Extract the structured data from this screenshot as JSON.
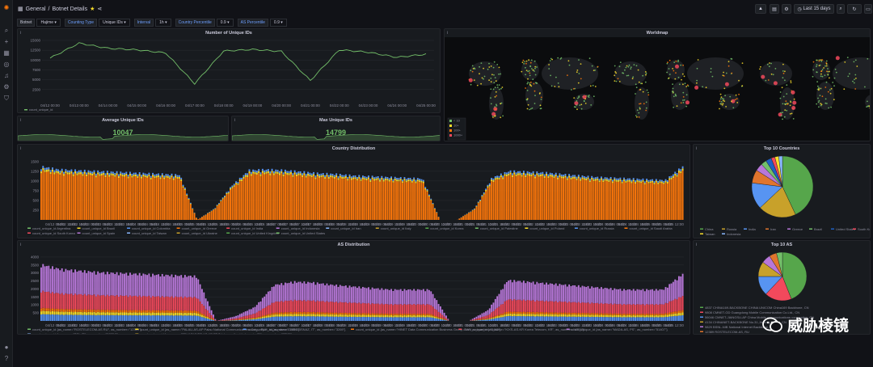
{
  "topbar": {
    "breadcrumb_home": "General",
    "breadcrumb_sep": "/",
    "breadcrumb_page": "Botnet Details",
    "time_range": "Last 15 days"
  },
  "variables": [
    {
      "label": "Botnet",
      "value": "Hajime",
      "blue": false
    },
    {
      "label": "Counting Type",
      "value": "Unique IDs",
      "blue": true
    },
    {
      "label": "Interval",
      "value": "1h",
      "blue": true
    },
    {
      "label": "Country Percentile",
      "value": "0.9",
      "blue": true
    },
    {
      "label": "AS Percentile",
      "value": "0.9",
      "blue": true
    }
  ],
  "panels": {
    "unique_ids": {
      "title": "Number of Unique IDs",
      "legend": "count_unique_id"
    },
    "worldmap": {
      "title": "Worldmap",
      "legend": [
        "< 10",
        "10+",
        "100+",
        "1000+"
      ]
    },
    "avg": {
      "title": "Average Unique IDs",
      "value": "10047"
    },
    "max": {
      "title": "Max Unique IDs",
      "value": "14799"
    },
    "country": {
      "title": "Country Distribution"
    },
    "top_countries": {
      "title": "Top 10 Countries"
    },
    "as_dist": {
      "title": "AS Distribution"
    },
    "top_as": {
      "title": "Top 10 AS"
    }
  },
  "watermark": "威胁棱镜",
  "colors": {
    "green": "#73bf69",
    "orange": "#ff780a",
    "purple": "#b877d9",
    "red": "#f2495c",
    "blue": "#5794f2",
    "yellow": "#fade2a",
    "bg": "#111217",
    "panel": "#181b1f"
  },
  "chart_data": [
    {
      "type": "line",
      "title": "Number of Unique IDs",
      "x": [
        "04/12 00:00",
        "04/13 00:00",
        "04/14 00:00",
        "04/15 00:00",
        "04/16 00:00",
        "04/17 00:00",
        "04/18 00:00",
        "04/19 00:00",
        "04/20 00:00",
        "04/21 00:00",
        "04/22 00:00",
        "04/23 00:00",
        "04/24 00:00",
        "04/25 00:00"
      ],
      "yticks": [
        "2500",
        "5000",
        "7500",
        "10000",
        "12500",
        "15000"
      ],
      "ylim": [
        0,
        15000
      ],
      "series": [
        {
          "name": "count_unique_id",
          "values": [
            10500,
            14300,
            13000,
            12600,
            11800,
            4000,
            12300,
            12700,
            12200,
            4800,
            12600,
            12000,
            10700,
            11500
          ]
        }
      ]
    },
    {
      "type": "bar",
      "title": "Country Distribution",
      "x": [
        "04/12 06:00",
        "04/12 12:00",
        "04/12 18:00",
        "04/13 00:00",
        "04/13 06:00",
        "04/13 12:00",
        "04/13 18:00",
        "04/14 00:00",
        "04/14 06:00",
        "04/14 12:00",
        "04/14 18:00",
        "04/15 00:00",
        "04/15 06:00",
        "04/15 12:00",
        "04/15 18:00",
        "04/16 00:00",
        "04/16 06:00",
        "04/16 12:00",
        "04/16 18:00",
        "04/17 00:00",
        "04/17 06:00",
        "04/17 12:00",
        "04/17 18:00",
        "04/18 00:00",
        "04/18 06:00",
        "04/18 12:00",
        "04/18 18:00",
        "04/19 00:00",
        "04/19 06:00",
        "04/19 12:00",
        "04/19 18:00",
        "04/20 00:00",
        "04/20 06:00",
        "04/20 12:00",
        "04/20 18:00",
        "04/21 00:00",
        "04/21 06:00",
        "04/21 12:00",
        "04/21 18:00",
        "04/22 00:00",
        "04/22 06:00",
        "04/22 12:00",
        "04/22 18:00",
        "04/23 00:00",
        "04/23 06:00",
        "04/23 12:00",
        "04/23 18:00",
        "04/24 00:00",
        "04/24 06:00",
        "04/24 12:00",
        "04/24 18:00",
        "04/25 00:00",
        "04/25 06:00",
        "04/25 12:00"
      ],
      "yticks": [
        "250",
        "500",
        "750",
        "1000",
        "1250",
        "1500"
      ],
      "ylim": [
        0,
        1600
      ],
      "series": [
        {
          "name": "count_unique_id Argentina"
        },
        {
          "name": "count_unique_id Brazil"
        },
        {
          "name": "count_unique_id Colombia"
        },
        {
          "name": "count_unique_id Greece"
        },
        {
          "name": "count_unique_id India"
        },
        {
          "name": "count_unique_id Indonesia"
        },
        {
          "name": "count_unique_id Iran"
        },
        {
          "name": "count_unique_id Italy"
        },
        {
          "name": "count_unique_id Korea"
        },
        {
          "name": "count_unique_id Palestine"
        },
        {
          "name": "count_unique_id Poland"
        },
        {
          "name": "count_unique_id Russia"
        },
        {
          "name": "count_unique_id Saudi Arabia"
        },
        {
          "name": "count_unique_id South Korea"
        },
        {
          "name": "count_unique_id Spain"
        },
        {
          "name": "count_unique_id Taiwan"
        },
        {
          "name": "count_unique_id Ukraine"
        },
        {
          "name": "count_unique_id United Kingdom"
        },
        {
          "name": "count_unique_id United States"
        }
      ],
      "envelope": [
        1400,
        1320,
        1300,
        1280,
        1260,
        1240,
        1220,
        1200,
        1180,
        0,
        300,
        900,
        1300,
        1320,
        1300,
        1260,
        1220,
        1200,
        1160,
        1140,
        1120,
        1100,
        1080,
        0,
        0,
        300,
        1100,
        1280,
        1260,
        1240,
        1200,
        1160,
        1120,
        1100,
        1080,
        1060,
        1040,
        1400
      ]
    },
    {
      "type": "pie",
      "title": "Top 10 Countries",
      "categories": [
        "China",
        "Russia",
        "India",
        "Iran",
        "Greece",
        "Brazil",
        "United States",
        "South Korea",
        "Taiwan",
        "Indonesia"
      ],
      "values": [
        43,
        20,
        14,
        7,
        4,
        3,
        3,
        2,
        2,
        2
      ],
      "colors": [
        "#56a64b",
        "#c8a12a",
        "#5794f2",
        "#e0752d",
        "#b877d9",
        "#73bf69",
        "#1f60c4",
        "#f2495c",
        "#fade2a",
        "#8ab8ff"
      ]
    },
    {
      "type": "bar",
      "title": "AS Distribution",
      "x": [
        "04/12 06:00",
        "04/12 12:00",
        "04/12 18:00",
        "04/13 00:00",
        "04/13 06:00",
        "04/13 12:00",
        "04/13 18:00",
        "04/14 00:00",
        "04/14 06:00",
        "04/14 12:00",
        "04/14 18:00",
        "04/15 00:00",
        "04/15 06:00",
        "04/15 12:00",
        "04/15 18:00",
        "04/16 00:00",
        "04/16 06:00",
        "04/16 12:00",
        "04/16 18:00",
        "04/17 00:00",
        "04/17 06:00",
        "04/17 12:00",
        "04/17 18:00",
        "04/18 00:00",
        "04/18 06:00",
        "04/18 12:00",
        "04/18 18:00",
        "04/19 00:00",
        "04/19 06:00",
        "04/19 12:00",
        "04/19 18:00",
        "04/20 00:00",
        "04/20 06:00",
        "04/20 12:00",
        "04/20 18:00",
        "04/21 00:00",
        "04/21 06:00",
        "04/21 12:00",
        "04/21 18:00",
        "04/22 00:00",
        "04/22 06:00",
        "04/22 12:00",
        "04/22 18:00",
        "04/23 00:00",
        "04/23 06:00",
        "04/23 12:00",
        "04/23 18:00",
        "04/24 00:00",
        "04/24 06:00",
        "04/24 12:00",
        "04/24 18:00",
        "04/25 00:00",
        "04/25 06:00",
        "04/25 12:00"
      ],
      "yticks": [
        "500",
        "1000",
        "1500",
        "2000",
        "2500",
        "3000",
        "3500",
        "4000"
      ],
      "ylim": [
        0,
        4200
      ],
      "series": [
        {
          "name": "count_unique_id {as_name=\"ROSTELECOM-AS RU\", as_number=\"12389\"}"
        },
        {
          "name": "count_unique_id {as_name=\"PALAU-AS-AP Palau National Communications Corp., PW\", as_number=\"17893\"}"
        },
        {
          "name": "count_unique_id {as_name=\"ASN-IBSNAZ, IT\", as_number=\"3269\"}"
        },
        {
          "name": "count_unique_id {as_name=\"HINET Data Communication Business Group, TW\", as_number=\"3462\"}"
        },
        {
          "name": "count_unique_id {as_name=\"KIXS-AS-KR Korea Telecom, KR\", as_number=\"4766\"}"
        },
        {
          "name": "count_unique_id {as_name=\"MADA-AS, PS\", as_number=\"51407\"}"
        },
        {
          "name": "count_unique_id {as_name=\"TCI, IR\", as_number=\"58224\"}"
        },
        {
          "name": "count_unique_id {as_name=\"TELKOMNET-AS-AP PT Telekomunikasi Indonesia, ID\", as_number=\"7713\"}"
        }
      ],
      "envelope": [
        3600,
        3300,
        3200,
        3100,
        3050,
        3000,
        2950,
        2900,
        2850,
        0,
        300,
        900,
        2300,
        2500,
        2450,
        2300,
        2200,
        2100,
        2000,
        2000,
        2000,
        0,
        0,
        700,
        2600,
        2500,
        2400,
        2300,
        2200,
        2100,
        2000,
        2000,
        2000,
        3000
      ]
    },
    {
      "type": "pie",
      "title": "Top 10 AS",
      "categories": [
        "4837 CHINA169-BACKBONE CHINA UNICOM China169 Backbone, CN",
        "9808 CMNET-GD Guangdong Mobile Communication Co.Ltd., CN",
        "56046 CMNET-JIANGSU-AP China Mobile communications corporation, CN",
        "4134 CHINANET-BACKBONE No.31,Jin-rong Street, CN",
        "9829 BSNL-NIB National Internet Backbone, IN",
        "12389 ROSTELECOM-AS, RU",
        "17816 China Unicom IP network China169 Guangdong province, CN"
      ],
      "values": [
        44,
        18,
        13,
        10,
        6,
        5,
        4
      ],
      "colors": [
        "#56a64b",
        "#f2495c",
        "#5794f2",
        "#c8a12a",
        "#b877d9",
        "#e0752d",
        "#73bf69"
      ]
    }
  ]
}
